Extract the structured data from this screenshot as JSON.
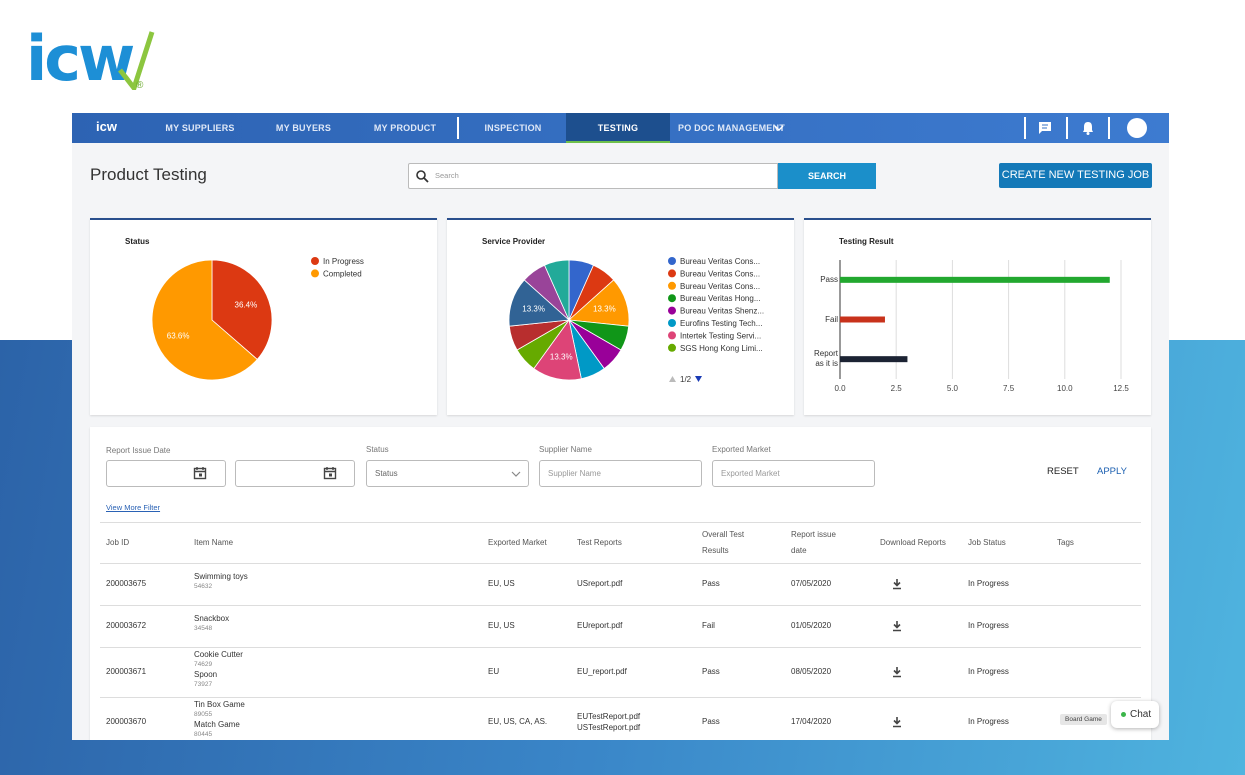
{
  "logo": {
    "text": "icw",
    "mark": "®"
  },
  "nav": {
    "brand": "icw",
    "items": [
      "MY SUPPLIERS",
      "MY BUYERS",
      "MY PRODUCT",
      "INSPECTION",
      "TESTING",
      "PO DOC MANAGEMENT"
    ],
    "active": 4
  },
  "header": {
    "title": "Product Testing",
    "search_placeholder": "Search",
    "search_button": "SEARCH",
    "create_button": "CREATE NEW TESTING JOB"
  },
  "chart_data": [
    {
      "type": "pie",
      "title": "Status",
      "categories": [
        "In Progress",
        "Completed"
      ],
      "values": [
        36.4,
        63.6
      ],
      "value_labels": [
        "36.4%",
        "63.6%"
      ],
      "colors": [
        "#dc3912",
        "#ff9900"
      ]
    },
    {
      "type": "pie",
      "title": "Service Provider",
      "categories": [
        "Bureau Veritas Cons...",
        "Bureau Veritas Cons...",
        "Bureau Veritas Cons...",
        "Bureau Veritas Hong...",
        "Bureau Veritas Shenz...",
        "Eurofins Testing Tech...",
        "Intertek Testing Servi...",
        "SGS Hong Kong Limi...",
        null,
        null,
        null,
        null
      ],
      "values": [
        6.7,
        6.7,
        13.3,
        6.7,
        6.7,
        6.7,
        13.3,
        6.7,
        6.7,
        13.3,
        6.7,
        6.7
      ],
      "value_labels": [
        null,
        null,
        "13.3%",
        null,
        null,
        null,
        "13.3%",
        null,
        null,
        "13.3%",
        null,
        null
      ],
      "colors": [
        "#3366cc",
        "#dc3912",
        "#ff9900",
        "#109618",
        "#990099",
        "#0099c6",
        "#dd4477",
        "#66aa00",
        "#b82e2e",
        "#316395",
        "#994499",
        "#22aa99"
      ],
      "legend_page": "1/2"
    },
    {
      "type": "bar",
      "orientation": "horizontal",
      "title": "Testing Result",
      "categories": [
        "Pass",
        "Fail",
        "Report as it is"
      ],
      "values": [
        12,
        2,
        3
      ],
      "colors": [
        "#22a82f",
        "#c8321b",
        "#1c2333"
      ],
      "xlim": [
        0,
        12.5
      ],
      "xticks": [
        {
          "value": 0,
          "label": "0.0"
        },
        2.5,
        {
          "value": 5,
          "label": "5.0"
        },
        7.5,
        {
          "value": 10,
          "label": "10.0"
        },
        12.5
      ],
      "grid": true
    }
  ],
  "filters": {
    "date_label": "Report Issue Date",
    "status_label": "Status",
    "status_placeholder": "Status",
    "supplier_label": "Supplier Name",
    "supplier_placeholder": "Supplier Name",
    "market_label": "Exported Market",
    "market_placeholder": "Exported Market",
    "reset": "RESET",
    "apply": "APPLY",
    "more": "View More Filter"
  },
  "table": {
    "columns": [
      "Job ID",
      "Item Name",
      "Exported Market",
      "Test Reports",
      "Overall Test Results",
      "Report issue date",
      "Download Reports",
      "Job Status",
      "Tags"
    ],
    "rows": [
      {
        "job_id": "200003675",
        "items": [
          {
            "name": "Swimming toys",
            "code": "54632"
          }
        ],
        "market": "EU, US",
        "reports": [
          "USreport.pdf"
        ],
        "result": "Pass",
        "date": "07/05/2020",
        "status": "In Progress",
        "tags": []
      },
      {
        "job_id": "200003672",
        "items": [
          {
            "name": "Snackbox",
            "code": "34548"
          }
        ],
        "market": "EU, US",
        "reports": [
          "EUreport.pdf"
        ],
        "result": "Fail",
        "date": "01/05/2020",
        "status": "In Progress",
        "tags": []
      },
      {
        "job_id": "200003671",
        "items": [
          {
            "name": "Cookie Cutter",
            "code": "74629"
          },
          {
            "name": "Spoon",
            "code": "73927"
          }
        ],
        "market": "EU",
        "reports": [
          "EU_report.pdf"
        ],
        "result": "Pass",
        "date": "08/05/2020",
        "status": "In Progress",
        "tags": []
      },
      {
        "job_id": "200003670",
        "items": [
          {
            "name": "Tin Box Game",
            "code": "89055"
          },
          {
            "name": "Match Game",
            "code": "80445"
          }
        ],
        "market": "EU, US, CA, AS.",
        "reports": [
          "EUTestReport.pdf",
          "USTestReport.pdf"
        ],
        "result": "Pass",
        "date": "17/04/2020",
        "status": "In Progress",
        "tags": [
          "Board Game"
        ]
      }
    ]
  },
  "chat": "Chat"
}
